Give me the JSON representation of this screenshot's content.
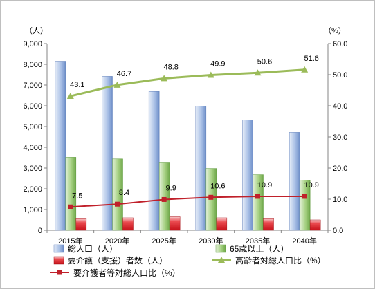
{
  "chart_data": {
    "type": "bar+line",
    "categories": [
      "2015年",
      "2020年",
      "2025年",
      "2030年",
      "2035年",
      "2040年"
    ],
    "left_axis": {
      "unit": "（人）",
      "range": [
        0,
        9000
      ],
      "step": 1000,
      "ticks": [
        "0",
        "1,000",
        "2,000",
        "3,000",
        "4,000",
        "5,000",
        "6,000",
        "7,000",
        "8,000",
        "9,000"
      ]
    },
    "right_axis": {
      "unit": "（%）",
      "range": [
        0,
        60
      ],
      "step": 10,
      "ticks": [
        "0.0",
        "10.0",
        "20.0",
        "30.0",
        "40.0",
        "50.0",
        "60.0"
      ]
    },
    "bar_series": [
      {
        "name": "総人口（人）",
        "values": [
          8150,
          7420,
          6690,
          5990,
          5310,
          4720
        ],
        "color": "#7f9fd6"
      },
      {
        "name": "65歳以上（人）",
        "values": [
          3520,
          3440,
          3250,
          2980,
          2680,
          2420
        ],
        "color": "#8fc46a"
      },
      {
        "name": "要介護（支援）者数（人）",
        "values": [
          560,
          600,
          650,
          600,
          560,
          500
        ],
        "color": "#e0191f"
      }
    ],
    "line_series": [
      {
        "name": "高齢者対総人口比（%）",
        "values": [
          43.1,
          46.7,
          48.8,
          49.9,
          50.6,
          51.6
        ],
        "labels": [
          "43.1",
          "46.7",
          "48.8",
          "49.9",
          "50.6",
          "51.6"
        ],
        "color": "#9bbb59",
        "marker": "triangle"
      },
      {
        "name": "要介護者等対総人口比（%）",
        "values": [
          7.5,
          8.4,
          9.9,
          10.6,
          10.9,
          10.9
        ],
        "labels": [
          "7.5",
          "8.4",
          "9.9",
          "10.6",
          "10.9",
          "10.9"
        ],
        "color": "#c0202a",
        "marker": "square"
      }
    ],
    "grid": false,
    "legend_position": "bottom"
  }
}
